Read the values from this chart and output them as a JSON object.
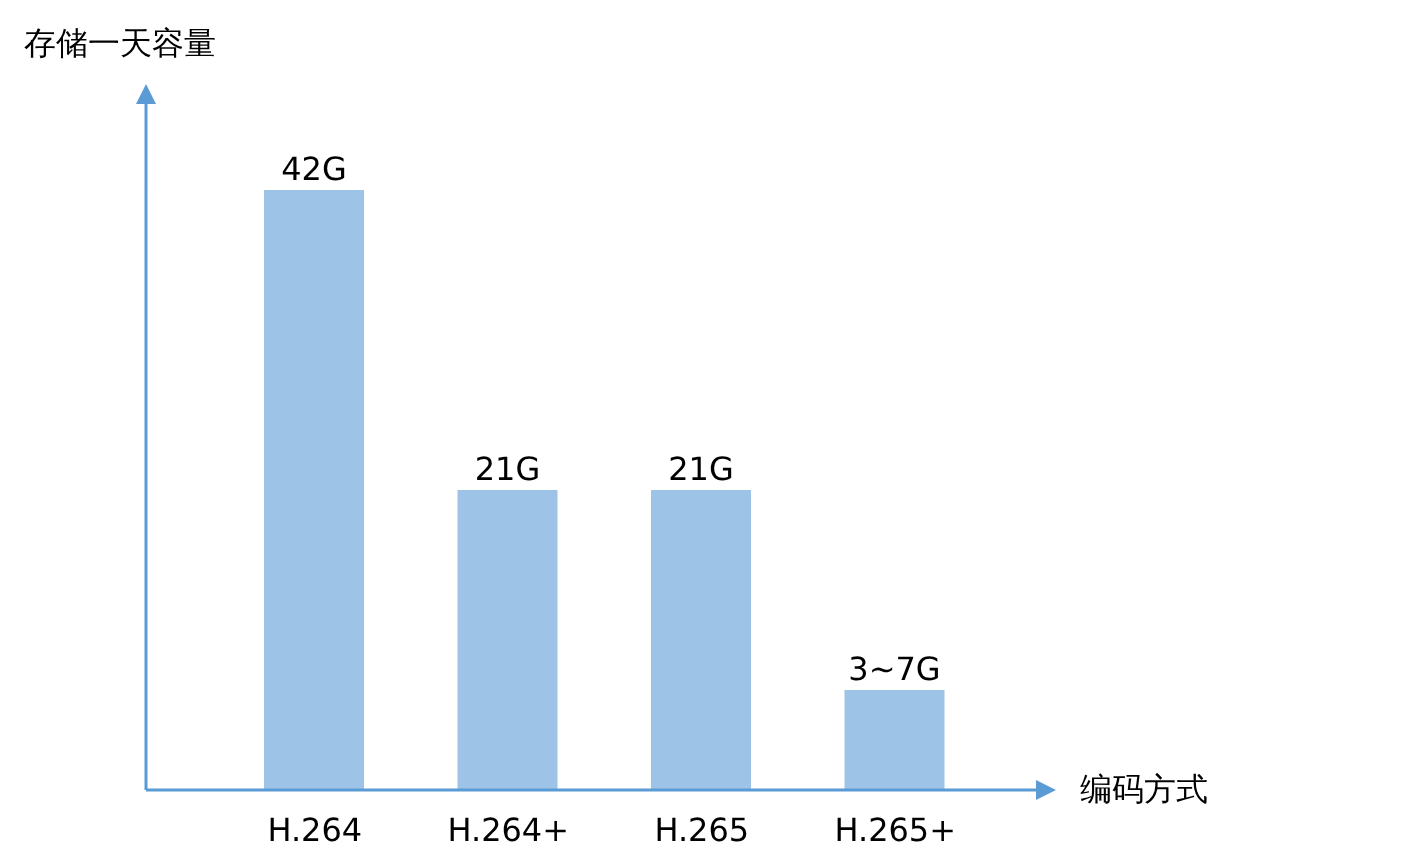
{
  "chart_data": {
    "type": "bar",
    "xlabel": "编码方式",
    "ylabel": "存储一天容量",
    "categories": [
      "H.264",
      "H.264+",
      "H.265",
      "H.265+"
    ],
    "values": [
      42,
      21,
      21,
      7
    ],
    "value_labels": [
      "42G",
      "21G",
      "21G",
      "3~7G"
    ],
    "color": "#9dc3e6"
  }
}
